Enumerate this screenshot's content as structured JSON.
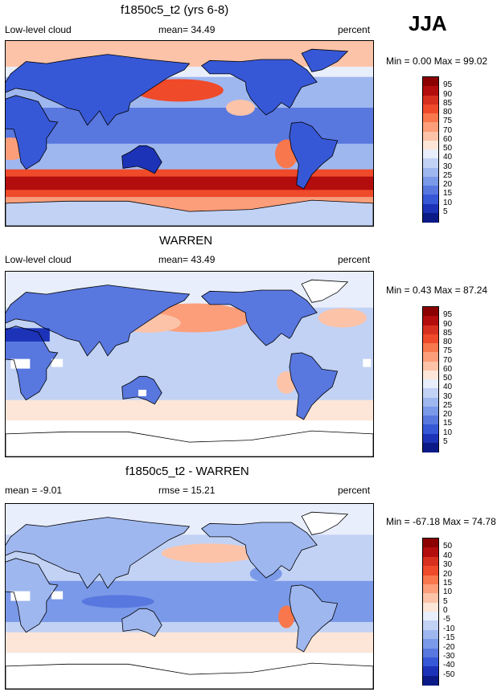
{
  "season": "JJA",
  "panels": [
    {
      "id": "model",
      "title": "f1850c5_t2 (yrs 6-8)",
      "left_label": "Low-level cloud",
      "center_label": "mean=  34.49",
      "right_label": "percent",
      "minmax": "Min =   0.00 Max =  99.02",
      "colorbar": {
        "ticks": [
          "95",
          "90",
          "85",
          "80",
          "75",
          "70",
          "60",
          "50",
          "40",
          "30",
          "25",
          "20",
          "15",
          "10",
          "5"
        ],
        "colors": [
          "#8b0000",
          "#b30d0d",
          "#d7301f",
          "#ef4a2a",
          "#f8774c",
          "#fc9e7a",
          "#fcc3a8",
          "#fde6d7",
          "#e8eefb",
          "#c2d2f5",
          "#9fb7ef",
          "#7a99e8",
          "#5877df",
          "#3758d6",
          "#1c33b8",
          "#0b1a86"
        ]
      }
    },
    {
      "id": "obs",
      "title": "WARREN",
      "left_label": "Low-level cloud",
      "center_label": "mean=  43.49",
      "right_label": "percent",
      "minmax": "Min =   0.43 Max =  87.24",
      "colorbar": {
        "ticks": [
          "95",
          "90",
          "85",
          "80",
          "75",
          "70",
          "60",
          "50",
          "40",
          "30",
          "25",
          "20",
          "15",
          "10",
          "5"
        ],
        "colors": [
          "#8b0000",
          "#b30d0d",
          "#d7301f",
          "#ef4a2a",
          "#f8774c",
          "#fc9e7a",
          "#fcc3a8",
          "#fde6d7",
          "#e8eefb",
          "#c2d2f5",
          "#9fb7ef",
          "#7a99e8",
          "#5877df",
          "#3758d6",
          "#1c33b8",
          "#0b1a86"
        ]
      }
    },
    {
      "id": "diff",
      "title": "f1850c5_t2 - WARREN",
      "left_label": "mean =  -9.01",
      "center_label": "rmse =  15.21",
      "right_label": "percent",
      "minmax": "Min = -67.18 Max =  74.78",
      "colorbar": {
        "ticks": [
          "50",
          "40",
          "30",
          "20",
          "15",
          "10",
          "5",
          "0",
          "-5",
          "-10",
          "-15",
          "-20",
          "-30",
          "-40",
          "-50"
        ],
        "colors": [
          "#8b0000",
          "#b30d0d",
          "#d7301f",
          "#ef4a2a",
          "#f8774c",
          "#fc9e7a",
          "#fcc3a8",
          "#fde6d7",
          "#e8eefb",
          "#c2d2f5",
          "#9fb7ef",
          "#7a99e8",
          "#5877df",
          "#3758d6",
          "#1c33b8",
          "#0b1a86"
        ]
      }
    }
  ]
}
